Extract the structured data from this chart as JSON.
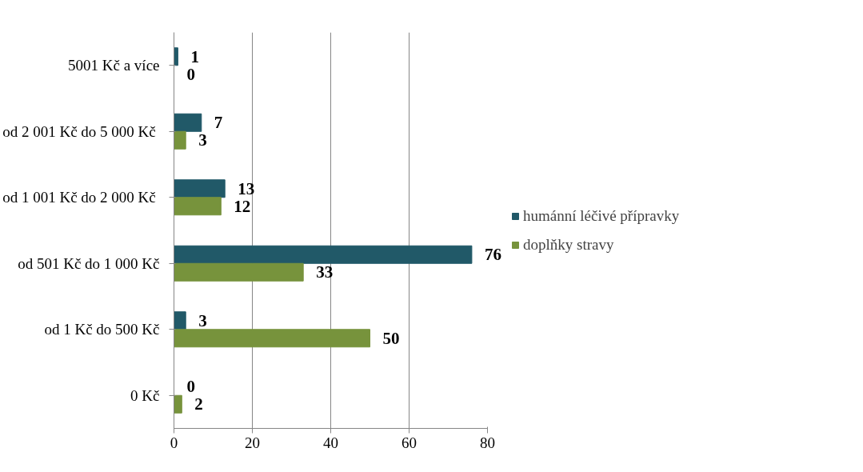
{
  "chart_data": {
    "type": "bar",
    "orientation": "horizontal",
    "categories": [
      "5001 Kč a více",
      "od 2 001 Kč  do 5 000 Kč",
      "od 1 001 Kč  do 2 000 Kč",
      "od 501 Kč do 1 000 Kč",
      "od 1 Kč do 500 Kč",
      "0 Kč"
    ],
    "series": [
      {
        "name": "humánní léčivé přípravky",
        "color": "#215968",
        "values": [
          1,
          7,
          13,
          76,
          3,
          0
        ]
      },
      {
        "name": "doplňky stravy",
        "color": "#77933c",
        "values": [
          0,
          3,
          12,
          33,
          50,
          2
        ]
      }
    ],
    "xlim": [
      0,
      80
    ],
    "xticks": [
      0,
      20,
      40,
      60,
      80
    ],
    "grid": "x",
    "legend": "right",
    "data_labels": true
  }
}
